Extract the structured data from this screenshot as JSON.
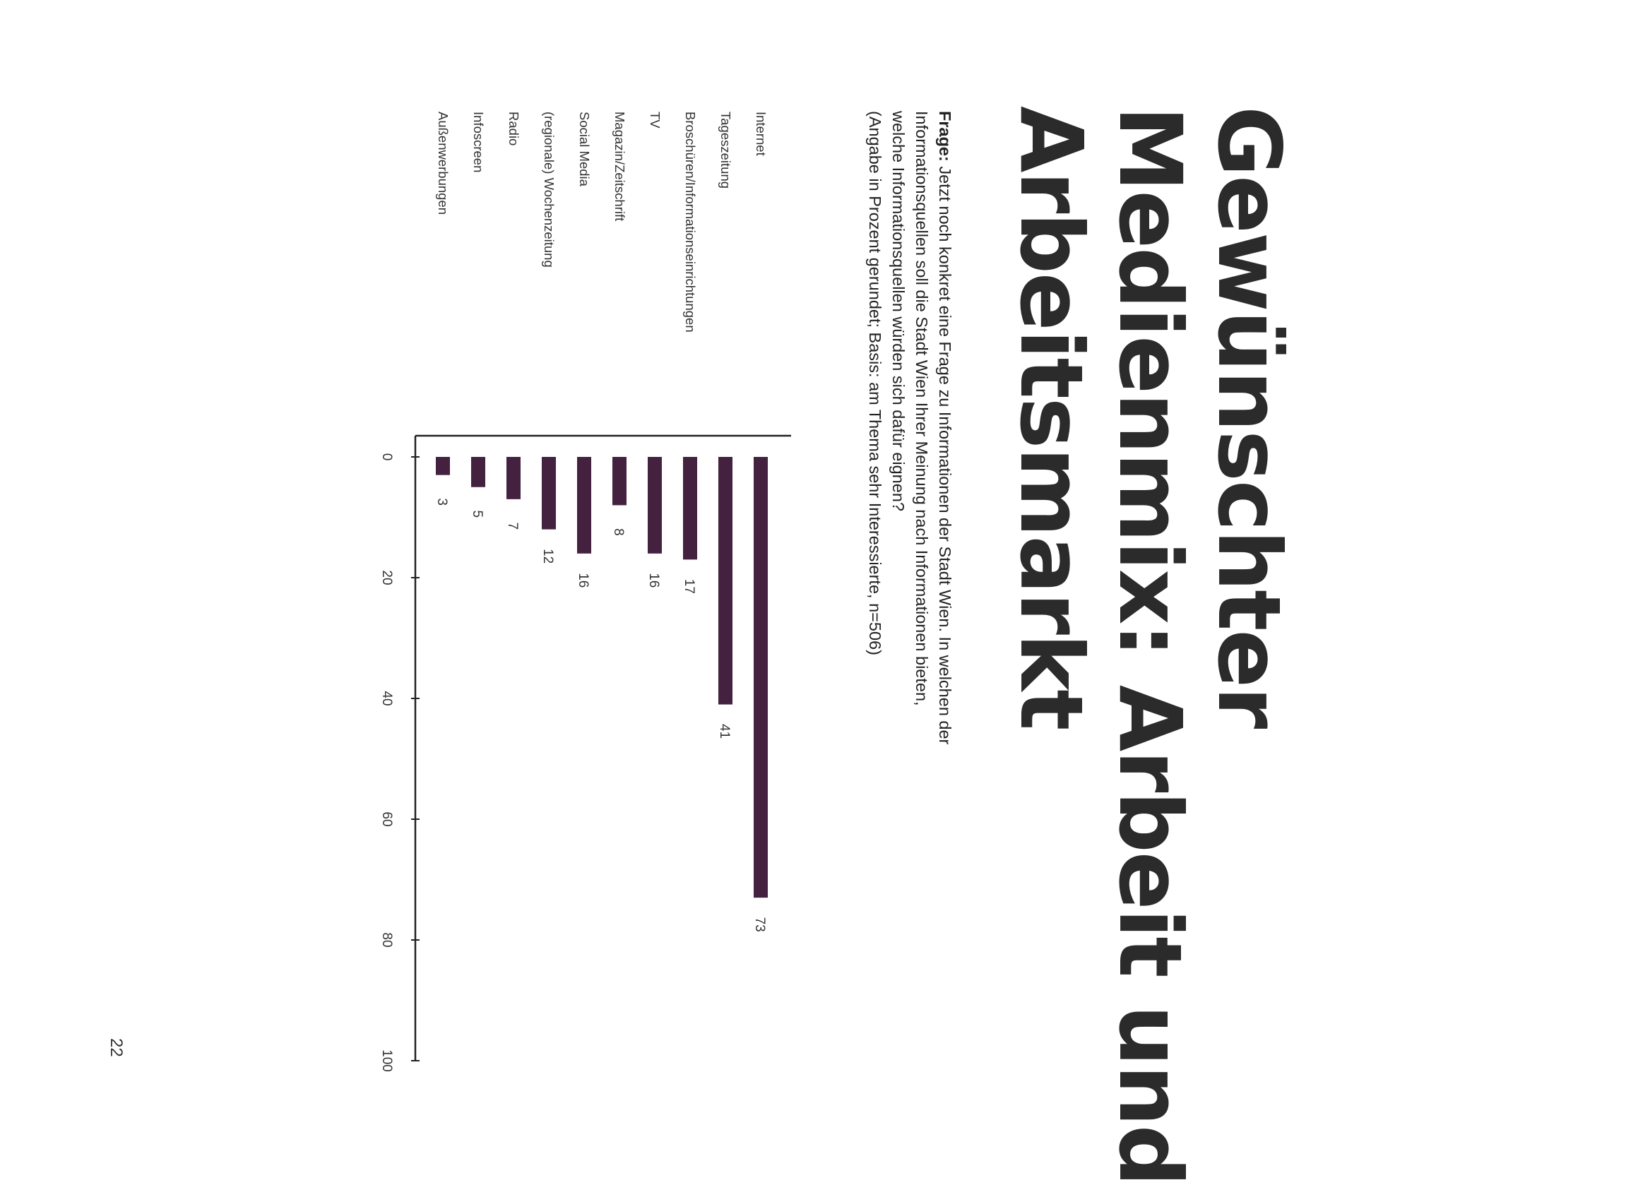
{
  "title_lines": [
    "Gewünschter",
    "Medienmix: Arbeit und",
    "Arbeitsmarkt"
  ],
  "question": {
    "label": "Frage:",
    "text": " Jetzt noch konkret eine Frage zu Informationen der Stadt Wien. In welchen der Informationsquellen soll die Stadt Wien Ihrer Meinung nach Informationen bieten, welche Informationsquellen würden sich dafür eignen?",
    "note": "(Angabe in Prozent gerundet; Basis: am Thema sehr Interessierte, n=506)"
  },
  "page_number": "22",
  "chart_data": {
    "type": "bar",
    "orientation": "horizontal",
    "categories": [
      "Internet",
      "Tageszeitung",
      "Broschüren/Informationseinrichtungen",
      "TV",
      "Magazin/Zeitschrift",
      "Social Media",
      "(regionale) Wochenzeitung",
      "Radio",
      "Infoscreen",
      "Außenwerbungen"
    ],
    "values": [
      73,
      41,
      17,
      16,
      8,
      16,
      12,
      7,
      5,
      3
    ],
    "value_labels": [
      "73",
      "41",
      "17",
      "16",
      "8",
      "16",
      "12",
      "7",
      "5",
      "3"
    ],
    "xlim": [
      0,
      100
    ],
    "ticks": [
      0,
      20,
      40,
      60,
      80,
      100
    ],
    "tick_labels": [
      "0",
      "20",
      "40",
      "60",
      "80",
      "100"
    ],
    "grid": false,
    "bar_color": "#43213f",
    "page_rotation": "90deg clockwise"
  }
}
